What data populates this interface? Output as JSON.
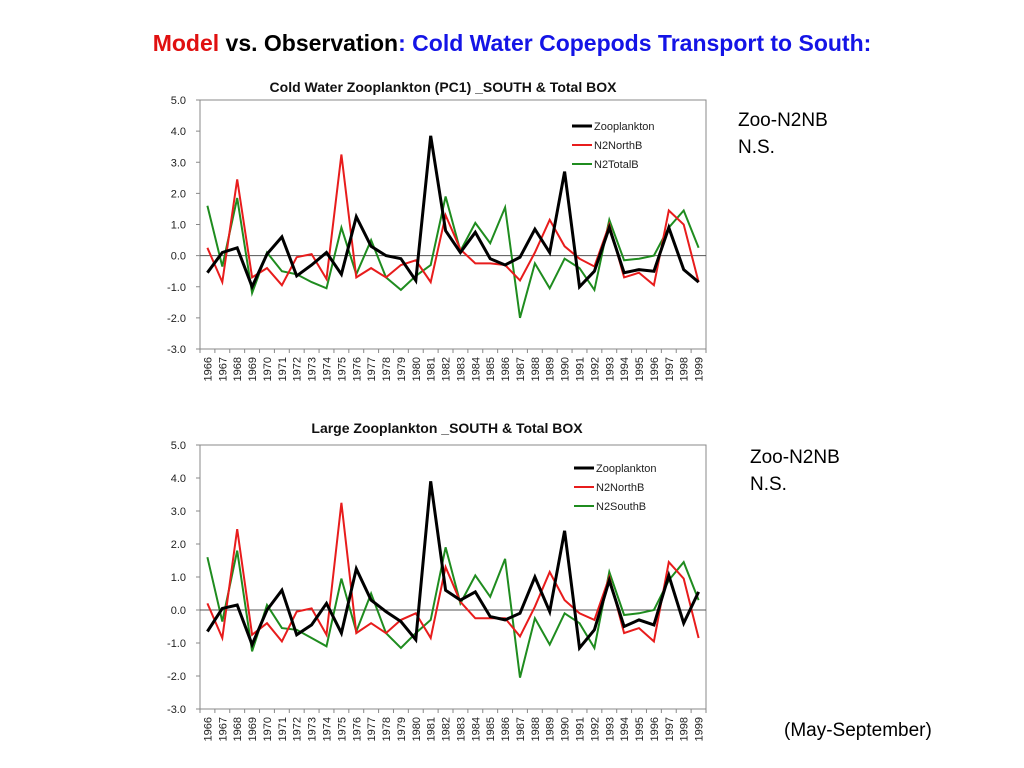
{
  "slide": {
    "title_part1": "Model",
    "title_part2": " vs. Observation",
    "title_part3": ": Cold Water Copepods Transport to South:",
    "note1_line1": "Zoo-N2NB",
    "note1_line2": "N.S.",
    "note2_line1": "Zoo-N2NB",
    "note2_line2": "N.S.",
    "footnote": "(May-September)"
  },
  "colors": {
    "zooplankton": "#000000",
    "north": "#e81c1c",
    "other": "#1f8c1f"
  },
  "chart_data": [
    {
      "type": "line",
      "title": "Cold Water Zooplankton (PC1) _SOUTH & Total  BOX",
      "ylim": [
        -3.0,
        5.0
      ],
      "yticks": [
        "5.0",
        "4.0",
        "3.0",
        "2.0",
        "1.0",
        "0.0",
        "-1.0",
        "-2.0",
        "-3.0"
      ],
      "grid": false,
      "legend_position": "top-right",
      "x": [
        "1966",
        "1967",
        "1968",
        "1969",
        "1970",
        "1971",
        "1972",
        "1973",
        "1974",
        "1975",
        "1976",
        "1977",
        "1978",
        "1979",
        "1980",
        "1981",
        "1982",
        "1983",
        "1984",
        "1985",
        "1986",
        "1987",
        "1988",
        "1989",
        "1990",
        "1991",
        "1992",
        "1993",
        "1994",
        "1995",
        "1996",
        "1997",
        "1998",
        "1999"
      ],
      "series": [
        {
          "name": "Zooplankton",
          "color": "#000000",
          "values": [
            -0.55,
            0.1,
            0.25,
            -1.0,
            0.05,
            0.6,
            -0.65,
            -0.3,
            0.1,
            -0.6,
            1.25,
            0.3,
            0.0,
            -0.1,
            -0.8,
            3.85,
            0.8,
            0.1,
            0.75,
            -0.1,
            -0.3,
            -0.05,
            0.85,
            0.1,
            2.7,
            -1.0,
            -0.5,
            0.9,
            -0.55,
            -0.45,
            -0.5,
            0.9,
            -0.45,
            -0.85
          ]
        },
        {
          "name": "N2NorthB",
          "color": "#e81c1c",
          "values": [
            0.25,
            -0.85,
            2.45,
            -0.7,
            -0.4,
            -0.95,
            -0.05,
            0.05,
            -0.75,
            3.25,
            -0.7,
            -0.4,
            -0.7,
            -0.3,
            -0.15,
            -0.85,
            1.3,
            0.2,
            -0.25,
            -0.25,
            -0.3,
            -0.8,
            0.1,
            1.15,
            0.3,
            -0.1,
            -0.35,
            1.0,
            -0.7,
            -0.55,
            -0.95,
            1.45,
            1.0,
            -0.85
          ]
        },
        {
          "name": "N2TotalB",
          "color": "#1f8c1f",
          "values": [
            1.6,
            -0.35,
            1.85,
            -1.2,
            0.1,
            -0.5,
            -0.6,
            -0.85,
            -1.05,
            0.9,
            -0.6,
            0.5,
            -0.7,
            -1.1,
            -0.65,
            -0.3,
            1.9,
            0.15,
            1.05,
            0.4,
            1.55,
            -2.0,
            -0.25,
            -1.05,
            -0.1,
            -0.4,
            -1.1,
            1.15,
            -0.15,
            -0.1,
            0.0,
            0.9,
            1.45,
            0.25
          ]
        }
      ]
    },
    {
      "type": "line",
      "title": "Large Zooplankton _SOUTH & Total BOX",
      "ylim": [
        -3.0,
        5.0
      ],
      "yticks": [
        "5.0",
        "4.0",
        "3.0",
        "2.0",
        "1.0",
        "0.0",
        "-1.0",
        "-2.0",
        "-3.0"
      ],
      "grid": false,
      "legend_position": "top-right",
      "x": [
        "1966",
        "1967",
        "1968",
        "1969",
        "1970",
        "1971",
        "1972",
        "1973",
        "1974",
        "1975",
        "1976",
        "1977",
        "1978",
        "1979",
        "1980",
        "1981",
        "1982",
        "1983",
        "1984",
        "1985",
        "1986",
        "1987",
        "1988",
        "1989",
        "1990",
        "1991",
        "1992",
        "1993",
        "1994",
        "1995",
        "1996",
        "1997",
        "1998",
        "1999"
      ],
      "series": [
        {
          "name": "Zooplankton",
          "color": "#000000",
          "values": [
            -0.65,
            0.05,
            0.15,
            -1.05,
            0.0,
            0.6,
            -0.75,
            -0.45,
            0.2,
            -0.7,
            1.25,
            0.3,
            -0.05,
            -0.35,
            -0.9,
            3.9,
            0.6,
            0.3,
            0.55,
            -0.2,
            -0.3,
            -0.1,
            1.0,
            -0.05,
            2.4,
            -1.15,
            -0.6,
            0.9,
            -0.5,
            -0.3,
            -0.45,
            1.05,
            -0.4,
            0.55
          ]
        },
        {
          "name": "N2NorthB",
          "color": "#e81c1c",
          "values": [
            0.2,
            -0.85,
            2.45,
            -0.75,
            -0.4,
            -0.95,
            -0.05,
            0.05,
            -0.75,
            3.25,
            -0.7,
            -0.4,
            -0.7,
            -0.3,
            -0.1,
            -0.85,
            1.3,
            0.25,
            -0.25,
            -0.25,
            -0.25,
            -0.8,
            0.1,
            1.15,
            0.3,
            -0.1,
            -0.3,
            1.0,
            -0.7,
            -0.55,
            -0.95,
            1.45,
            0.95,
            -0.85
          ]
        },
        {
          "name": "N2SouthB",
          "color": "#1f8c1f",
          "values": [
            1.6,
            -0.35,
            1.8,
            -1.25,
            0.15,
            -0.55,
            -0.6,
            -0.85,
            -1.1,
            0.95,
            -0.65,
            0.5,
            -0.7,
            -1.15,
            -0.7,
            -0.3,
            1.9,
            0.2,
            1.05,
            0.4,
            1.55,
            -2.05,
            -0.25,
            -1.05,
            -0.1,
            -0.4,
            -1.15,
            1.15,
            -0.15,
            -0.1,
            0.0,
            0.9,
            1.45,
            0.3
          ]
        }
      ]
    }
  ]
}
